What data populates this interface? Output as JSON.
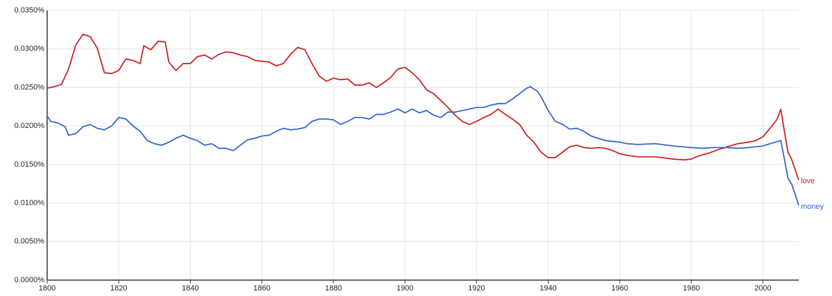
{
  "chart_data": {
    "type": "line",
    "xlim": [
      1800,
      2010
    ],
    "xticks": [
      1800,
      1820,
      1840,
      1860,
      1880,
      1900,
      1920,
      1940,
      1960,
      1980,
      2000
    ],
    "ylim": [
      0,
      0.035
    ],
    "yticks": [
      {
        "value": 0,
        "label": "0.0000%"
      },
      {
        "value": 0.005,
        "label": "0.0050%"
      },
      {
        "value": 0.01,
        "label": "0.0100%"
      },
      {
        "value": 0.015,
        "label": "0.0150%"
      },
      {
        "value": 0.02,
        "label": "0.0200%"
      },
      {
        "value": 0.025,
        "label": "0.0250%"
      },
      {
        "value": 0.03,
        "label": "0.0300%"
      },
      {
        "value": 0.035,
        "label": "0.0350%"
      }
    ],
    "grid": true,
    "series": [
      {
        "name": "love",
        "color": "#cc2222",
        "x": [
          1800,
          1802,
          1804,
          1806,
          1808,
          1810,
          1812,
          1814,
          1816,
          1818,
          1820,
          1822,
          1824,
          1826,
          1827,
          1829,
          1831,
          1833,
          1834,
          1836,
          1838,
          1840,
          1842,
          1844,
          1846,
          1848,
          1850,
          1852,
          1854,
          1856,
          1858,
          1860,
          1862,
          1864,
          1866,
          1868,
          1870,
          1872,
          1874,
          1876,
          1878,
          1880,
          1882,
          1884,
          1886,
          1888,
          1890,
          1892,
          1894,
          1896,
          1898,
          1900,
          1902,
          1904,
          1906,
          1908,
          1910,
          1912,
          1914,
          1916,
          1918,
          1920,
          1922,
          1924,
          1926,
          1928,
          1930,
          1932,
          1934,
          1936,
          1938,
          1940,
          1942,
          1944,
          1946,
          1948,
          1950,
          1952,
          1954,
          1956,
          1958,
          1960,
          1962,
          1965,
          1970,
          1975,
          1978,
          1980,
          1982,
          1985,
          1988,
          1990,
          1993,
          1996,
          1998,
          2000,
          2002,
          2004,
          2005,
          2006,
          2007,
          2008,
          2010
        ],
        "values": [
          0.0249,
          0.0251,
          0.0254,
          0.0274,
          0.0305,
          0.0319,
          0.0316,
          0.0301,
          0.0269,
          0.0268,
          0.0272,
          0.0287,
          0.0285,
          0.0281,
          0.0304,
          0.0299,
          0.031,
          0.0309,
          0.0283,
          0.0272,
          0.0281,
          0.0281,
          0.029,
          0.0292,
          0.0287,
          0.0293,
          0.0296,
          0.0295,
          0.0292,
          0.029,
          0.0285,
          0.0284,
          0.0283,
          0.0278,
          0.0281,
          0.0293,
          0.0302,
          0.0299,
          0.0281,
          0.0265,
          0.0258,
          0.0262,
          0.026,
          0.0261,
          0.0253,
          0.0253,
          0.0256,
          0.025,
          0.0256,
          0.0263,
          0.0274,
          0.0276,
          0.0269,
          0.026,
          0.0247,
          0.0242,
          0.0233,
          0.0224,
          0.0214,
          0.0206,
          0.0202,
          0.0206,
          0.0211,
          0.0215,
          0.0222,
          0.0215,
          0.0209,
          0.0202,
          0.0188,
          0.0179,
          0.0166,
          0.0159,
          0.0159,
          0.0166,
          0.0173,
          0.0175,
          0.0172,
          0.0171,
          0.0172,
          0.0171,
          0.0168,
          0.0164,
          0.0162,
          0.016,
          0.016,
          0.0157,
          0.0156,
          0.0157,
          0.0161,
          0.0165,
          0.017,
          0.0173,
          0.0177,
          0.0179,
          0.0181,
          0.0186,
          0.0197,
          0.0209,
          0.0222,
          0.0193,
          0.0166,
          0.0157,
          0.013
        ]
      },
      {
        "name": "money",
        "color": "#3366cc",
        "x": [
          1800,
          1801,
          1803,
          1805,
          1806,
          1808,
          1810,
          1812,
          1814,
          1816,
          1818,
          1820,
          1822,
          1824,
          1826,
          1828,
          1830,
          1832,
          1834,
          1836,
          1838,
          1840,
          1842,
          1844,
          1846,
          1848,
          1850,
          1852,
          1854,
          1856,
          1858,
          1860,
          1862,
          1864,
          1866,
          1868,
          1870,
          1872,
          1874,
          1876,
          1878,
          1880,
          1882,
          1884,
          1886,
          1888,
          1890,
          1892,
          1894,
          1896,
          1898,
          1900,
          1902,
          1904,
          1906,
          1908,
          1910,
          1912,
          1914,
          1916,
          1918,
          1920,
          1922,
          1924,
          1926,
          1928,
          1930,
          1932,
          1934,
          1935,
          1937,
          1938,
          1940,
          1942,
          1944,
          1946,
          1948,
          1950,
          1952,
          1954,
          1956,
          1958,
          1960,
          1962,
          1965,
          1970,
          1975,
          1980,
          1983,
          1986,
          1990,
          1993,
          1996,
          2000,
          2002,
          2005,
          2006,
          2007,
          2008,
          2010
        ],
        "values": [
          0.0213,
          0.0206,
          0.0204,
          0.0199,
          0.0188,
          0.019,
          0.0199,
          0.0202,
          0.0197,
          0.0195,
          0.02,
          0.0211,
          0.0209,
          0.02,
          0.0193,
          0.0181,
          0.0177,
          0.0175,
          0.0179,
          0.0184,
          0.0188,
          0.0184,
          0.0181,
          0.0175,
          0.0177,
          0.0171,
          0.0171,
          0.0168,
          0.0175,
          0.0182,
          0.0184,
          0.0187,
          0.0188,
          0.0193,
          0.0197,
          0.0195,
          0.0196,
          0.0198,
          0.0206,
          0.0209,
          0.0209,
          0.0208,
          0.0202,
          0.0206,
          0.0211,
          0.0211,
          0.0209,
          0.0215,
          0.0215,
          0.0218,
          0.0222,
          0.0217,
          0.0222,
          0.0217,
          0.022,
          0.0214,
          0.0211,
          0.0218,
          0.0218,
          0.022,
          0.0222,
          0.0224,
          0.0224,
          0.0227,
          0.0229,
          0.0229,
          0.0235,
          0.0242,
          0.0249,
          0.0251,
          0.0245,
          0.0238,
          0.022,
          0.0206,
          0.0202,
          0.0196,
          0.0197,
          0.0193,
          0.0187,
          0.0184,
          0.0181,
          0.018,
          0.0179,
          0.0177,
          0.0176,
          0.0177,
          0.0174,
          0.0172,
          0.0171,
          0.0172,
          0.0172,
          0.0171,
          0.0172,
          0.0174,
          0.0177,
          0.0181,
          0.0157,
          0.0132,
          0.0125,
          0.0097
        ]
      }
    ]
  }
}
